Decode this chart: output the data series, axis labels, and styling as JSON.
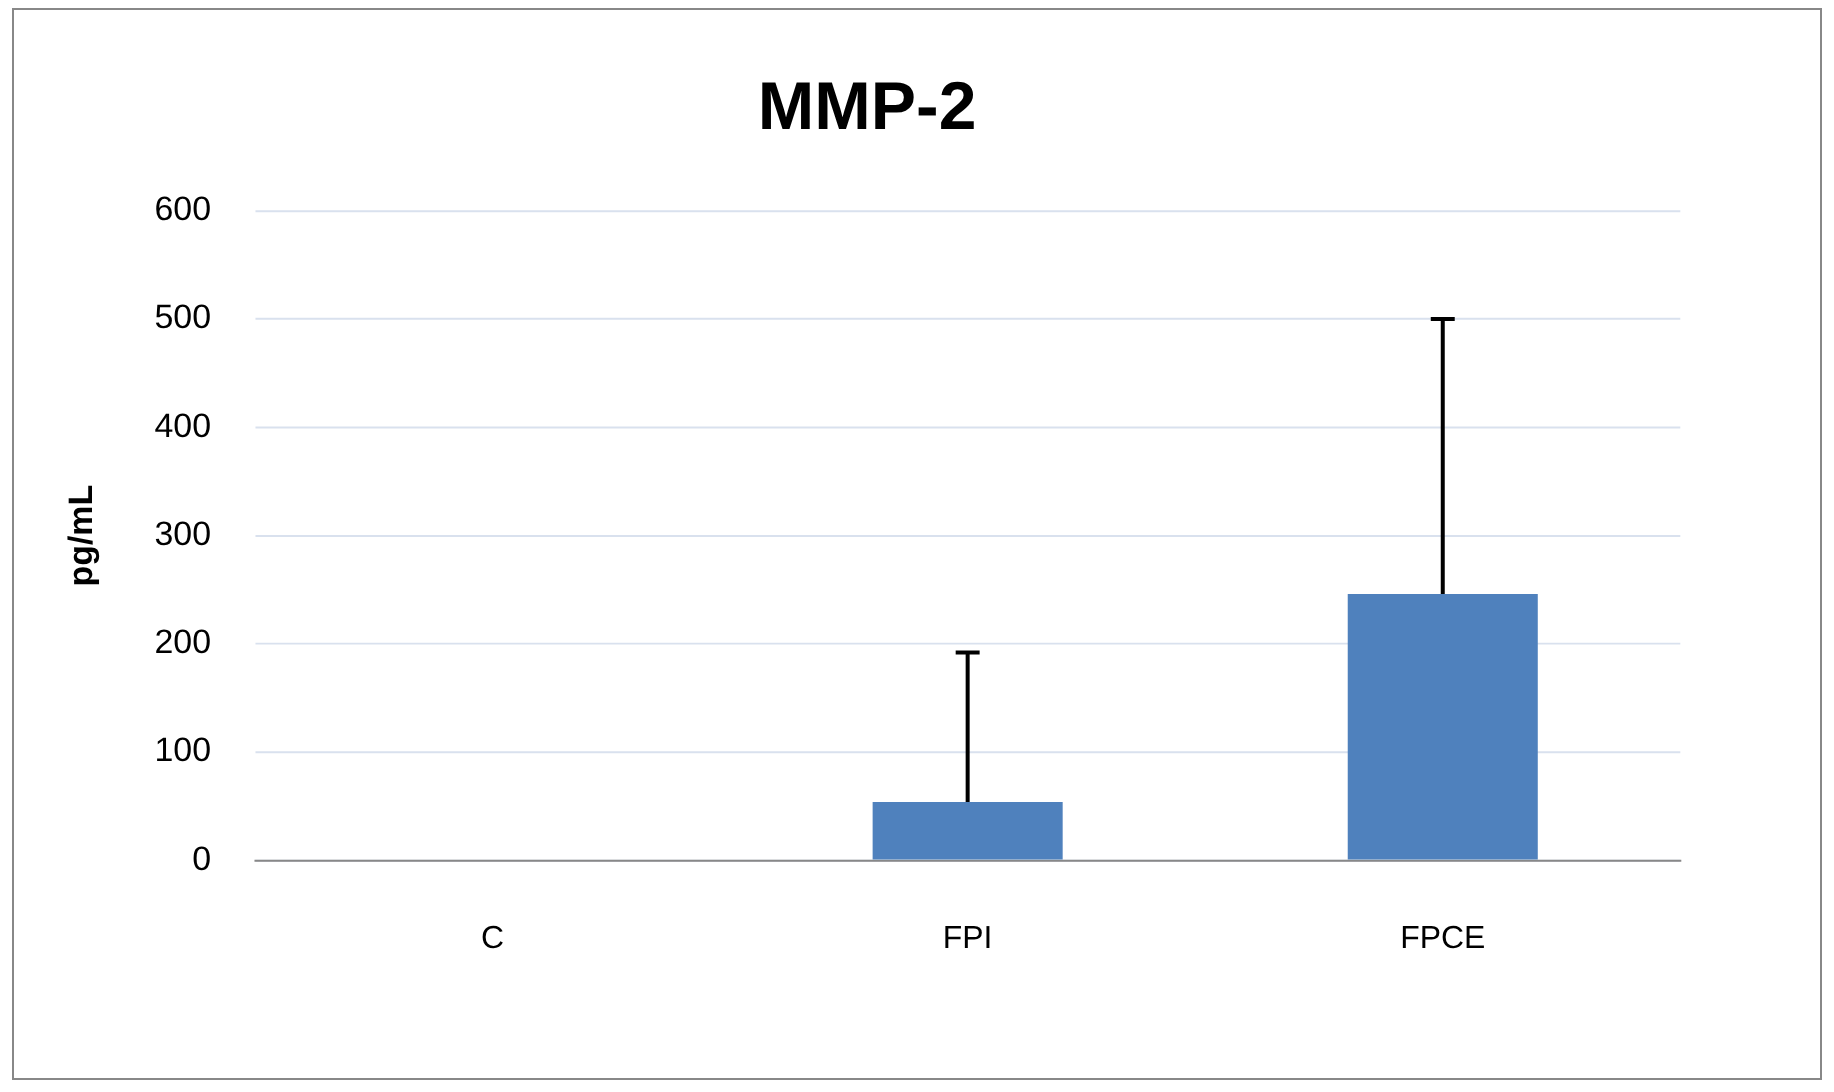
{
  "chart_data": {
    "type": "bar",
    "title": "MMP-2",
    "ylabel": "pg/mL",
    "categories": [
      "C",
      "FPI",
      "FPCE"
    ],
    "series": [
      {
        "color": "#4f81bd",
        "values": [
          0,
          54,
          246
        ],
        "errors": [
          null,
          [
            54,
            192
          ],
          [
            246,
            500
          ]
        ]
      }
    ],
    "ylim": [
      0,
      600
    ],
    "yticks": [
      0,
      100,
      200,
      300,
      400,
      500,
      600
    ],
    "grid": "y",
    "legend": false
  }
}
